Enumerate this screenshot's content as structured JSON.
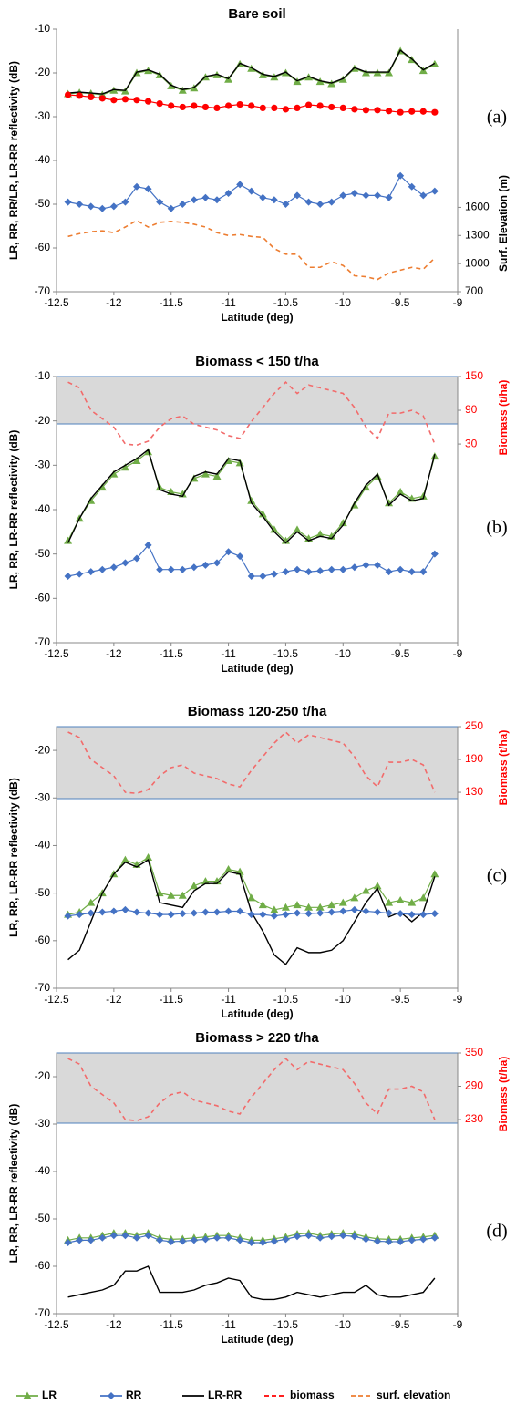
{
  "chart_data": [
    {
      "type": "line",
      "title": "Bare soil",
      "panel_label": "(a)",
      "x_label": "Latitude (deg)",
      "y_label": "LR, RR, RR/LR, LR-RR reflectivity (dB)",
      "y2_label": "Surf. Elevation (m)",
      "y2_color": "#000000",
      "xlim": [
        -12.5,
        -9
      ],
      "xticks": [
        -12.5,
        -12,
        -11.5,
        -11,
        -10.5,
        -10,
        -9.5,
        -9
      ],
      "ylim": [
        -70,
        -10
      ],
      "yticks": [
        -10,
        -20,
        -30,
        -40,
        -50,
        -60,
        -70
      ],
      "y2lim": [
        700,
        3500
      ],
      "y2ticks": [
        700,
        1000,
        1300,
        1600
      ],
      "x": [
        -12.4,
        -12.3,
        -12.2,
        -12.1,
        -12,
        -11.9,
        -11.8,
        -11.7,
        -11.6,
        -11.5,
        -11.4,
        -11.3,
        -11.2,
        -11.1,
        -11,
        -10.9,
        -10.8,
        -10.7,
        -10.6,
        -10.5,
        -10.4,
        -10.3,
        -10.2,
        -10.1,
        -10,
        -9.9,
        -9.8,
        -9.7,
        -9.6,
        -9.5,
        -9.4,
        -9.3,
        -9.2
      ],
      "series": [
        {
          "name": "LR",
          "color": "#70ad47",
          "marker": "triangle",
          "values": [
            -24.8,
            -24.5,
            -24.7,
            -25,
            -24,
            -24.2,
            -20,
            -19.5,
            -20.5,
            -23,
            -24,
            -23.5,
            -21,
            -20.5,
            -21.5,
            -18,
            -19,
            -20.5,
            -21,
            -20,
            -22,
            -21,
            -22,
            -22.5,
            -21.5,
            -19,
            -20,
            -20,
            -20,
            -15,
            -17,
            -19.5,
            -18
          ]
        },
        {
          "name": "LR-RR",
          "color": "#000000",
          "values": [
            -24.6,
            -24.4,
            -24.6,
            -24.8,
            -23.8,
            -24,
            -19.8,
            -19.3,
            -20.3,
            -22.8,
            -23.8,
            -23.3,
            -20.8,
            -20.3,
            -21.3,
            -17.8,
            -18.8,
            -20.3,
            -20.8,
            -19.8,
            -21.8,
            -20.8,
            -21.8,
            -22.3,
            -21.3,
            -18.8,
            -19.8,
            -19.8,
            -19.8,
            -14.8,
            -16.8,
            -19.3,
            -17.8
          ]
        },
        {
          "color": "#ff0000",
          "marker": "circle",
          "values": [
            -25,
            -25.2,
            -25.5,
            -25.8,
            -26.2,
            -26,
            -26.2,
            -26.5,
            -27,
            -27.5,
            -27.8,
            -27.5,
            -27.8,
            -28,
            -27.5,
            -27.2,
            -27.5,
            -28,
            -28,
            -28.3,
            -28,
            -27.3,
            -27.5,
            -27.8,
            -28,
            -28.3,
            -28.5,
            -28.5,
            -28.7,
            -29,
            -28.8,
            -28.8,
            -29
          ]
        },
        {
          "name": "RR",
          "color": "#4472c4",
          "marker": "diamond",
          "values": [
            -49.5,
            -50,
            -50.5,
            -51,
            -50.5,
            -49.5,
            -46,
            -46.5,
            -49.5,
            -51,
            -50,
            -49,
            -48.5,
            -49,
            -47.5,
            -45.5,
            -47,
            -48.5,
            -49,
            -50,
            -48,
            -49.5,
            -50,
            -49.5,
            -48,
            -47.5,
            -48,
            -48,
            -48.5,
            -43.5,
            -46,
            -48,
            -47
          ]
        },
        {
          "name": "surf. elevation",
          "color": "#ed7d31",
          "dash": true,
          "axis": "y2",
          "values": [
            1290,
            1320,
            1340,
            1350,
            1330,
            1390,
            1460,
            1390,
            1440,
            1450,
            1440,
            1420,
            1390,
            1330,
            1300,
            1310,
            1290,
            1280,
            1160,
            1100,
            1100,
            960,
            960,
            1020,
            980,
            870,
            860,
            830,
            900,
            930,
            960,
            940,
            1060
          ]
        }
      ]
    },
    {
      "type": "line",
      "title": "Biomass < 150 t/ha",
      "panel_label": "(b)",
      "x_label": "Latitude (deg)",
      "y_label": "LR, RR, LR-RR reflectivity (dB)",
      "y2_label": "Biomass (t/ha)",
      "y2_color": "#ff0000",
      "xlim": [
        -12.5,
        -9
      ],
      "xticks": [
        -12.5,
        -12,
        -11.5,
        -11,
        -10.5,
        -10,
        -9.5,
        -9
      ],
      "ylim": [
        -70,
        -10
      ],
      "yticks": [
        -10,
        -20,
        -30,
        -40,
        -50,
        -60,
        -70
      ],
      "y2lim": [
        -323,
        150
      ],
      "y2ticks": [
        30,
        90,
        150
      ],
      "x": [
        -12.4,
        -12.3,
        -12.2,
        -12.1,
        -12,
        -11.9,
        -11.8,
        -11.7,
        -11.6,
        -11.5,
        -11.4,
        -11.3,
        -11.2,
        -11.1,
        -11,
        -10.9,
        -10.8,
        -10.7,
        -10.6,
        -10.5,
        -10.4,
        -10.3,
        -10.2,
        -10.1,
        -10,
        -9.9,
        -9.8,
        -9.7,
        -9.6,
        -9.5,
        -9.4,
        -9.3,
        -9.2
      ],
      "series": [
        {
          "name": "LR",
          "color": "#70ad47",
          "marker": "triangle",
          "values": [
            -47,
            -42,
            -38,
            -35,
            -32,
            -30.5,
            -29,
            -27,
            -35,
            -36,
            -36.5,
            -33,
            -32,
            -32.5,
            -29,
            -29.5,
            -38,
            -41,
            -44.5,
            -47,
            -44.5,
            -46.5,
            -45.5,
            -46,
            -43,
            -39,
            -35,
            -32.5,
            -38.5,
            -36,
            -37.5,
            -37,
            -28
          ]
        },
        {
          "name": "LR-RR",
          "color": "#000000",
          "values": [
            -47.5,
            -42,
            -37.5,
            -34.5,
            -31.5,
            -30,
            -28.5,
            -26.5,
            -35.5,
            -36.5,
            -37,
            -32.5,
            -31.5,
            -32,
            -28.5,
            -29,
            -38.5,
            -41.5,
            -45,
            -47.5,
            -45,
            -47,
            -46,
            -46.5,
            -43.5,
            -38.5,
            -34.5,
            -32,
            -39,
            -36.5,
            -38,
            -37.5,
            -27.5
          ]
        },
        {
          "name": "RR",
          "color": "#4472c4",
          "marker": "diamond",
          "values": [
            -55,
            -54.5,
            -54,
            -53.5,
            -53,
            -52,
            -51,
            -48,
            -53.5,
            -53.5,
            -53.5,
            -53,
            -52.5,
            -52,
            -49.5,
            -50.5,
            -55,
            -55,
            -54.5,
            -54,
            -53.5,
            -54,
            -53.8,
            -53.5,
            -53.5,
            -53,
            -52.5,
            -52.5,
            -54,
            -53.5,
            -54,
            -54,
            -50
          ]
        },
        {
          "name": "biomass",
          "color": "#f26b6b",
          "dash": true,
          "axis": "y2",
          "values": [
            140,
            130,
            90,
            75,
            60,
            30,
            28,
            35,
            60,
            75,
            80,
            65,
            60,
            55,
            45,
            40,
            70,
            95,
            120,
            140,
            120,
            135,
            130,
            125,
            120,
            95,
            60,
            40,
            85,
            85,
            90,
            80,
            30
          ]
        }
      ]
    },
    {
      "type": "line",
      "title": "Biomass 120-250 t/ha",
      "panel_label": "(c)",
      "x_label": "Latitude (deg)",
      "y_label": "LR, RR, LR-RR reflectivity (dB)",
      "y2_label": "Biomass (t/ha)",
      "y2_color": "#ff0000",
      "xlim": [
        -12.5,
        -9
      ],
      "xticks": [
        -12.5,
        -12,
        -11.5,
        -11,
        -10.5,
        -10,
        -9.5,
        -9
      ],
      "ylim": [
        -70,
        -15
      ],
      "yticks": [
        -20,
        -30,
        -40,
        -50,
        -60,
        -70
      ],
      "y2lim": [
        -228,
        250
      ],
      "y2ticks": [
        130,
        190,
        250
      ],
      "x": [
        -12.4,
        -12.3,
        -12.2,
        -12.1,
        -12,
        -11.9,
        -11.8,
        -11.7,
        -11.6,
        -11.5,
        -11.4,
        -11.3,
        -11.2,
        -11.1,
        -11,
        -10.9,
        -10.8,
        -10.7,
        -10.6,
        -10.5,
        -10.4,
        -10.3,
        -10.2,
        -10.1,
        -10,
        -9.9,
        -9.8,
        -9.7,
        -9.6,
        -9.5,
        -9.4,
        -9.3,
        -9.2
      ],
      "series": [
        {
          "name": "LR",
          "color": "#70ad47",
          "marker": "triangle",
          "values": [
            -54.5,
            -54,
            -52,
            -50,
            -46,
            -43,
            -44,
            -42.5,
            -50,
            -50.5,
            -50.5,
            -48.5,
            -47.5,
            -47.5,
            -45,
            -45.5,
            -51,
            -52.5,
            -53.5,
            -53,
            -52.5,
            -53,
            -53,
            -52.5,
            -52,
            -51,
            -49.5,
            -48.5,
            -52,
            -51.5,
            -52,
            -51,
            -46
          ]
        },
        {
          "name": "LR-RR",
          "color": "#000000",
          "values": [
            -64,
            -62,
            -56,
            -50,
            -46,
            -43.5,
            -44.5,
            -43,
            -52,
            -52.5,
            -53,
            -49.5,
            -48,
            -48,
            -45.5,
            -46,
            -54,
            -58,
            -63,
            -65,
            -61.5,
            -62.5,
            -62.5,
            -62,
            -60,
            -56,
            -52,
            -49,
            -55,
            -54,
            -56,
            -54,
            -46.5
          ]
        },
        {
          "name": "RR",
          "color": "#4472c4",
          "marker": "diamond",
          "values": [
            -54.8,
            -54.5,
            -54.2,
            -54,
            -53.8,
            -53.5,
            -54,
            -54.2,
            -54.5,
            -54.5,
            -54.3,
            -54.2,
            -54,
            -54,
            -53.8,
            -53.8,
            -54.5,
            -54.5,
            -54.8,
            -54.5,
            -54.2,
            -54.3,
            -54.2,
            -54,
            -53.8,
            -53.5,
            -53.8,
            -54,
            -54.2,
            -54.3,
            -54.5,
            -54.5,
            -54.3
          ]
        },
        {
          "name": "biomass",
          "color": "#f26b6b",
          "dash": true,
          "axis": "y2",
          "values": [
            240,
            230,
            190,
            175,
            160,
            130,
            128,
            135,
            160,
            175,
            180,
            165,
            160,
            155,
            145,
            140,
            170,
            195,
            220,
            240,
            220,
            235,
            230,
            225,
            220,
            195,
            160,
            140,
            185,
            185,
            190,
            180,
            130
          ]
        }
      ]
    },
    {
      "type": "line",
      "title": "Biomass > 220 t/ha",
      "panel_label": "(d)",
      "x_label": "Latitude (deg)",
      "y_label": "LR, RR, LR-RR reflectivity (dB)",
      "y2_label": "Biomass (t/ha)",
      "y2_color": "#ff0000",
      "xlim": [
        -12.5,
        -9
      ],
      "xticks": [
        -12.5,
        -12,
        -11.5,
        -11,
        -10.5,
        -10,
        -9.5,
        -9
      ],
      "ylim": [
        -70,
        -15
      ],
      "yticks": [
        -20,
        -30,
        -40,
        -50,
        -60,
        -70
      ],
      "y2lim": [
        -120,
        350
      ],
      "y2ticks": [
        230,
        290,
        350
      ],
      "x": [
        -12.4,
        -12.3,
        -12.2,
        -12.1,
        -12,
        -11.9,
        -11.8,
        -11.7,
        -11.6,
        -11.5,
        -11.4,
        -11.3,
        -11.2,
        -11.1,
        -11,
        -10.9,
        -10.8,
        -10.7,
        -10.6,
        -10.5,
        -10.4,
        -10.3,
        -10.2,
        -10.1,
        -10,
        -9.9,
        -9.8,
        -9.7,
        -9.6,
        -9.5,
        -9.4,
        -9.3,
        -9.2
      ],
      "series": [
        {
          "name": "LR",
          "color": "#70ad47",
          "marker": "triangle",
          "values": [
            -54.5,
            -54,
            -54,
            -53.5,
            -53,
            -53,
            -53.5,
            -53,
            -54,
            -54.3,
            -54.2,
            -54,
            -53.8,
            -53.5,
            -53.5,
            -54,
            -54.5,
            -54.5,
            -54.2,
            -53.8,
            -53.2,
            -53,
            -53.5,
            -53.2,
            -53,
            -53.2,
            -53.8,
            -54.2,
            -54.3,
            -54.3,
            -54,
            -53.8,
            -53.5
          ]
        },
        {
          "name": "RR",
          "color": "#4472c4",
          "marker": "diamond",
          "values": [
            -55,
            -54.5,
            -54.5,
            -54,
            -53.5,
            -53.5,
            -54,
            -53.5,
            -54.5,
            -54.8,
            -54.7,
            -54.5,
            -54.3,
            -54,
            -54,
            -54.5,
            -55,
            -55,
            -54.7,
            -54.3,
            -53.7,
            -53.5,
            -54,
            -53.7,
            -53.5,
            -53.7,
            -54.3,
            -54.7,
            -54.8,
            -54.8,
            -54.5,
            -54.3,
            -54
          ]
        },
        {
          "name": "LR-RR",
          "color": "#000000",
          "values": [
            -66.5,
            -66,
            -65.5,
            -65,
            -64,
            -61,
            -61,
            -60,
            -65.5,
            -65.5,
            -65.5,
            -65,
            -64,
            -63.5,
            -62.5,
            -63,
            -66.5,
            -67,
            -67,
            -66.5,
            -65.5,
            -66,
            -66.5,
            -66,
            -65.5,
            -65.5,
            -64,
            -66,
            -66.5,
            -66.5,
            -66,
            -65.5,
            -62.5
          ]
        },
        {
          "name": "biomass",
          "color": "#f26b6b",
          "dash": true,
          "axis": "y2",
          "values": [
            340,
            330,
            290,
            275,
            260,
            230,
            228,
            235,
            260,
            275,
            280,
            265,
            260,
            255,
            245,
            240,
            270,
            295,
            320,
            340,
            320,
            335,
            330,
            325,
            320,
            295,
            260,
            240,
            285,
            285,
            290,
            280,
            230
          ]
        }
      ]
    }
  ],
  "legend": [
    {
      "label": "LR",
      "color": "#70ad47",
      "marker": "triangle"
    },
    {
      "label": "RR",
      "color": "#4472c4",
      "marker": "diamond"
    },
    {
      "label": "LR-RR",
      "color": "#000000"
    },
    {
      "label": "biomass",
      "color": "#ff0000",
      "dash": true
    },
    {
      "label": "surf. elevation",
      "color": "#ed7d31",
      "dash": true
    }
  ]
}
